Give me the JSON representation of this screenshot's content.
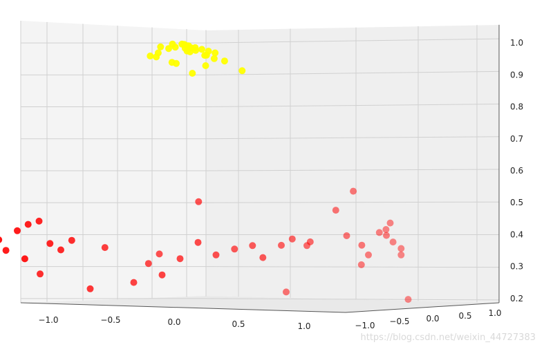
{
  "chart_data": {
    "type": "scatter",
    "projection": "3d",
    "grid": true,
    "axes": {
      "x": {
        "ticks": [
          "−1.0",
          "−0.5",
          "0.0",
          "0.5",
          "1.0"
        ]
      },
      "y": {
        "ticks": [
          "−1.0",
          "−0.5",
          "0.0",
          "0.5",
          "1.0"
        ]
      },
      "z": {
        "ticks": [
          "0.2",
          "0.3",
          "0.4",
          "0.5",
          "0.6",
          "0.7",
          "0.8",
          "0.9",
          "1.0"
        ],
        "range": [
          0.15,
          1.05
        ]
      }
    },
    "series": [
      {
        "color": "#ffff00",
        "points": [
          [
            -0.05,
            -0.25,
            0.96
          ],
          [
            -0.02,
            -0.2,
            0.97
          ],
          [
            0.0,
            -0.1,
            0.985
          ],
          [
            0.02,
            -0.05,
            0.99
          ],
          [
            0.04,
            0.0,
            1.0
          ],
          [
            0.06,
            0.05,
            0.995
          ],
          [
            0.08,
            0.1,
            0.99
          ],
          [
            0.1,
            0.15,
            0.985
          ],
          [
            0.12,
            0.2,
            0.98
          ],
          [
            0.14,
            0.25,
            0.975
          ],
          [
            -0.03,
            -0.15,
            0.99
          ],
          [
            0.0,
            -0.05,
            1.0
          ],
          [
            0.03,
            0.05,
            1.0
          ],
          [
            0.05,
            0.1,
            0.99
          ],
          [
            0.07,
            0.0,
            0.995
          ],
          [
            0.09,
            -0.05,
            0.985
          ],
          [
            0.11,
            0.05,
            0.98
          ],
          [
            0.01,
            0.15,
            0.99
          ],
          [
            -0.01,
            0.2,
            0.98
          ],
          [
            0.04,
            0.3,
            0.97
          ],
          [
            0.13,
            -0.1,
            0.975
          ],
          [
            0.16,
            0.1,
            0.965
          ],
          [
            0.02,
            -0.3,
            0.955
          ],
          [
            0.08,
            0.35,
            0.96
          ],
          [
            0.18,
            0.3,
            0.95
          ],
          [
            0.0,
            0.0,
            0.94
          ],
          [
            0.05,
            -0.15,
            0.94
          ],
          [
            0.1,
            0.2,
            0.935
          ],
          [
            0.06,
            0.1,
            0.91
          ],
          [
            0.25,
            0.4,
            0.92
          ]
        ]
      },
      {
        "color": "#ff0000",
        "points": [
          [
            -1.0,
            -0.9,
            0.3
          ],
          [
            -0.95,
            -0.8,
            0.33
          ],
          [
            -0.9,
            -0.7,
            0.35
          ],
          [
            -0.85,
            -0.75,
            0.39
          ],
          [
            -0.8,
            -0.6,
            0.42
          ],
          [
            -0.75,
            -0.55,
            0.44
          ],
          [
            -0.7,
            -0.5,
            0.45
          ],
          [
            -0.65,
            -0.45,
            0.38
          ],
          [
            -0.6,
            -0.4,
            0.36
          ],
          [
            -0.55,
            -0.35,
            0.39
          ],
          [
            -0.88,
            -0.6,
            0.36
          ],
          [
            -0.72,
            -0.65,
            0.33
          ],
          [
            -0.8,
            -0.3,
            0.29
          ],
          [
            -0.5,
            -0.2,
            0.24
          ],
          [
            -0.45,
            -0.1,
            0.37
          ],
          [
            -0.3,
            0.0,
            0.26
          ],
          [
            -0.25,
            0.1,
            0.32
          ],
          [
            -0.2,
            0.15,
            0.35
          ],
          [
            -0.1,
            0.0,
            0.28
          ],
          [
            0.0,
            0.05,
            0.33
          ],
          [
            0.05,
            0.2,
            0.51
          ],
          [
            0.1,
            0.1,
            0.38
          ],
          [
            0.2,
            0.15,
            0.34
          ],
          [
            0.25,
            0.3,
            0.36
          ],
          [
            0.35,
            0.35,
            0.37
          ],
          [
            0.45,
            0.3,
            0.33
          ],
          [
            0.5,
            0.45,
            0.37
          ],
          [
            0.55,
            0.5,
            0.39
          ],
          [
            0.6,
            0.6,
            0.37
          ],
          [
            0.65,
            0.55,
            0.38
          ],
          [
            0.4,
            0.7,
            0.23
          ],
          [
            0.75,
            0.7,
            0.48
          ],
          [
            0.8,
            0.75,
            0.4
          ],
          [
            0.82,
            0.8,
            0.54
          ],
          [
            0.85,
            0.85,
            0.31
          ],
          [
            0.88,
            0.8,
            0.37
          ],
          [
            0.9,
            0.85,
            0.34
          ],
          [
            0.95,
            0.9,
            0.41
          ],
          [
            1.0,
            0.95,
            0.44
          ],
          [
            0.97,
            0.95,
            0.42
          ],
          [
            1.0,
            0.9,
            0.4
          ],
          [
            1.02,
            0.95,
            0.38
          ],
          [
            1.05,
            1.0,
            0.36
          ],
          [
            1.05,
            1.0,
            0.34
          ],
          [
            1.1,
            1.0,
            0.2
          ]
        ]
      }
    ]
  },
  "watermark": "https://blog.csdn.net/weixin_44727383"
}
